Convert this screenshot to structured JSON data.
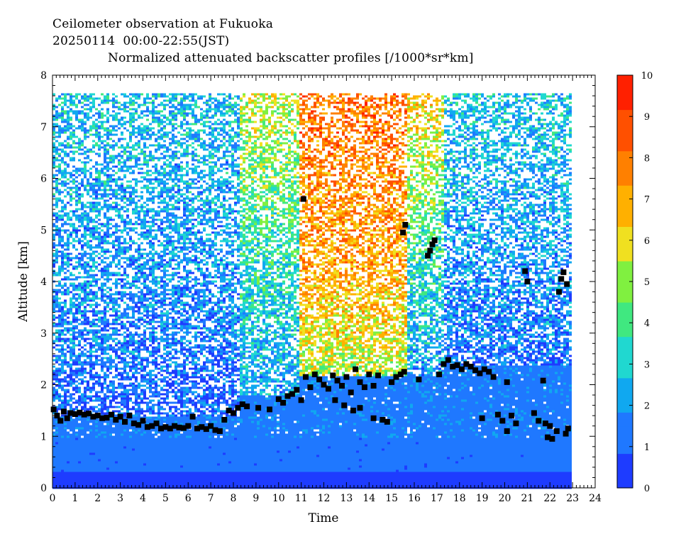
{
  "header": {
    "line1": "Ceilometer observation at Fukuoka",
    "line2": "20250114  00:00-22:55(JST)",
    "line3": "Normalized attenuated backscatter profiles [/1000*sr*km]"
  },
  "chart_data": {
    "type": "heatmap",
    "xlabel": "Time",
    "ylabel": "Altitude [km]",
    "xlim": [
      0,
      24
    ],
    "ylim": [
      0,
      8
    ],
    "x_ticks": [
      0,
      1,
      2,
      3,
      4,
      5,
      6,
      7,
      8,
      9,
      10,
      11,
      12,
      13,
      14,
      15,
      16,
      17,
      18,
      19,
      20,
      21,
      22,
      23,
      24
    ],
    "y_ticks": [
      0,
      1,
      2,
      3,
      4,
      5,
      6,
      7,
      8
    ],
    "data_extent": {
      "time_end": 22.92,
      "max_altitude": 7.65
    },
    "colorbar": {
      "range": [
        0,
        10
      ],
      "ticks": [
        0,
        1,
        2,
        3,
        4,
        5,
        6,
        7,
        8,
        9,
        10
      ],
      "colors": [
        "#1e3cff",
        "#1f78ff",
        "#10a8f0",
        "#20d8d0",
        "#40e880",
        "#80f040",
        "#f0e020",
        "#ffb000",
        "#ff8000",
        "#ff5000",
        "#ff2000"
      ]
    },
    "background": {
      "regions": [
        {
          "t0": 0.0,
          "t1": 8.2,
          "alt_low": 1.4,
          "profile": [
            [
              7.5,
              2.6
            ],
            [
              6.0,
              2.3
            ],
            [
              4.5,
              2.0
            ],
            [
              3.0,
              1.6
            ],
            [
              1.8,
              1.1
            ]
          ]
        },
        {
          "t0": 8.2,
          "t1": 10.8,
          "alt_low": 1.8,
          "profile": [
            [
              7.5,
              5.5
            ],
            [
              6.0,
              4.5
            ],
            [
              4.5,
              3.5
            ],
            [
              3.0,
              2.8
            ],
            [
              2.0,
              2.2
            ]
          ]
        },
        {
          "t0": 10.8,
          "t1": 15.6,
          "alt_low": 2.2,
          "profile": [
            [
              7.5,
              8.0
            ],
            [
              6.0,
              7.6
            ],
            [
              4.5,
              7.2
            ],
            [
              3.0,
              6.0
            ],
            [
              2.2,
              5.0
            ]
          ]
        },
        {
          "t0": 15.6,
          "t1": 17.2,
          "alt_low": 2.2,
          "profile": [
            [
              7.5,
              6.5
            ],
            [
              6.0,
              5.0
            ],
            [
              4.5,
              3.5
            ],
            [
              3.0,
              2.5
            ],
            [
              2.2,
              2.0
            ]
          ]
        },
        {
          "t0": 17.2,
          "t1": 22.92,
          "alt_low": 2.4,
          "profile": [
            [
              7.5,
              2.8
            ],
            [
              6.0,
              2.4
            ],
            [
              4.5,
              2.0
            ],
            [
              3.0,
              1.5
            ],
            [
              2.4,
              1.2
            ]
          ]
        }
      ]
    },
    "cloud_base": [
      [
        0.05,
        1.52
      ],
      [
        0.2,
        1.4
      ],
      [
        0.35,
        1.3
      ],
      [
        0.5,
        1.48
      ],
      [
        0.65,
        1.35
      ],
      [
        0.8,
        1.45
      ],
      [
        1.0,
        1.43
      ],
      [
        1.2,
        1.46
      ],
      [
        1.4,
        1.42
      ],
      [
        1.6,
        1.44
      ],
      [
        1.8,
        1.38
      ],
      [
        2.0,
        1.4
      ],
      [
        2.2,
        1.35
      ],
      [
        2.4,
        1.36
      ],
      [
        2.6,
        1.42
      ],
      [
        2.8,
        1.32
      ],
      [
        3.0,
        1.38
      ],
      [
        3.2,
        1.28
      ],
      [
        3.4,
        1.4
      ],
      [
        3.6,
        1.25
      ],
      [
        3.8,
        1.22
      ],
      [
        4.0,
        1.3
      ],
      [
        4.2,
        1.18
      ],
      [
        4.4,
        1.2
      ],
      [
        4.6,
        1.25
      ],
      [
        4.8,
        1.15
      ],
      [
        5.0,
        1.18
      ],
      [
        5.2,
        1.15
      ],
      [
        5.4,
        1.2
      ],
      [
        5.6,
        1.17
      ],
      [
        5.8,
        1.16
      ],
      [
        6.0,
        1.2
      ],
      [
        6.2,
        1.38
      ],
      [
        6.4,
        1.15
      ],
      [
        6.6,
        1.18
      ],
      [
        6.8,
        1.14
      ],
      [
        7.0,
        1.2
      ],
      [
        7.2,
        1.12
      ],
      [
        7.4,
        1.1
      ],
      [
        7.6,
        1.32
      ],
      [
        7.8,
        1.5
      ],
      [
        8.0,
        1.45
      ],
      [
        8.2,
        1.55
      ],
      [
        8.4,
        1.62
      ],
      [
        8.6,
        1.58
      ],
      [
        9.1,
        1.55
      ],
      [
        9.6,
        1.52
      ],
      [
        10.0,
        1.72
      ],
      [
        10.2,
        1.65
      ],
      [
        10.4,
        1.78
      ],
      [
        10.6,
        1.82
      ],
      [
        10.8,
        1.9
      ],
      [
        11.0,
        1.7
      ],
      [
        11.2,
        2.15
      ],
      [
        11.4,
        1.95
      ],
      [
        11.6,
        2.2
      ],
      [
        11.8,
        2.1
      ],
      [
        12.0,
        2.0
      ],
      [
        12.2,
        1.92
      ],
      [
        12.4,
        2.18
      ],
      [
        12.6,
        2.08
      ],
      [
        12.8,
        1.98
      ],
      [
        13.0,
        2.15
      ],
      [
        13.2,
        1.85
      ],
      [
        13.4,
        2.3
      ],
      [
        13.6,
        2.05
      ],
      [
        13.8,
        1.95
      ],
      [
        14.0,
        2.2
      ],
      [
        14.2,
        1.98
      ],
      [
        14.4,
        2.18
      ],
      [
        14.6,
        1.32
      ],
      [
        14.8,
        1.28
      ],
      [
        15.0,
        2.05
      ],
      [
        15.2,
        2.15
      ],
      [
        15.4,
        2.2
      ],
      [
        15.55,
        2.25
      ],
      [
        15.6,
        5.1
      ],
      [
        15.5,
        4.95
      ],
      [
        16.6,
        4.5
      ],
      [
        16.7,
        4.6
      ],
      [
        16.8,
        4.72
      ],
      [
        16.9,
        4.8
      ],
      [
        17.1,
        2.2
      ],
      [
        17.3,
        2.4
      ],
      [
        17.5,
        2.48
      ],
      [
        17.7,
        2.35
      ],
      [
        17.9,
        2.38
      ],
      [
        18.1,
        2.3
      ],
      [
        18.3,
        2.4
      ],
      [
        18.5,
        2.35
      ],
      [
        18.7,
        2.28
      ],
      [
        18.9,
        2.22
      ],
      [
        19.1,
        2.3
      ],
      [
        19.3,
        2.25
      ],
      [
        19.5,
        2.15
      ],
      [
        19.7,
        1.42
      ],
      [
        19.9,
        1.3
      ],
      [
        20.1,
        2.05
      ],
      [
        20.3,
        1.4
      ],
      [
        20.5,
        1.25
      ],
      [
        20.9,
        4.2
      ],
      [
        21.0,
        4.0
      ],
      [
        21.3,
        1.45
      ],
      [
        21.5,
        1.3
      ],
      [
        21.7,
        2.08
      ],
      [
        21.8,
        1.25
      ],
      [
        21.9,
        0.98
      ],
      [
        22.0,
        1.2
      ],
      [
        22.1,
        0.95
      ],
      [
        22.3,
        1.1
      ],
      [
        22.4,
        3.8
      ],
      [
        22.5,
        4.05
      ],
      [
        22.6,
        4.18
      ],
      [
        22.7,
        1.05
      ],
      [
        22.8,
        1.15
      ],
      [
        22.75,
        3.95
      ],
      [
        11.1,
        5.6
      ],
      [
        12.5,
        1.7
      ],
      [
        13.3,
        1.5
      ],
      [
        12.9,
        1.6
      ],
      [
        13.6,
        1.55
      ],
      [
        14.2,
        1.35
      ],
      [
        16.2,
        2.1
      ],
      [
        19.0,
        1.35
      ],
      [
        20.1,
        1.1
      ]
    ]
  }
}
